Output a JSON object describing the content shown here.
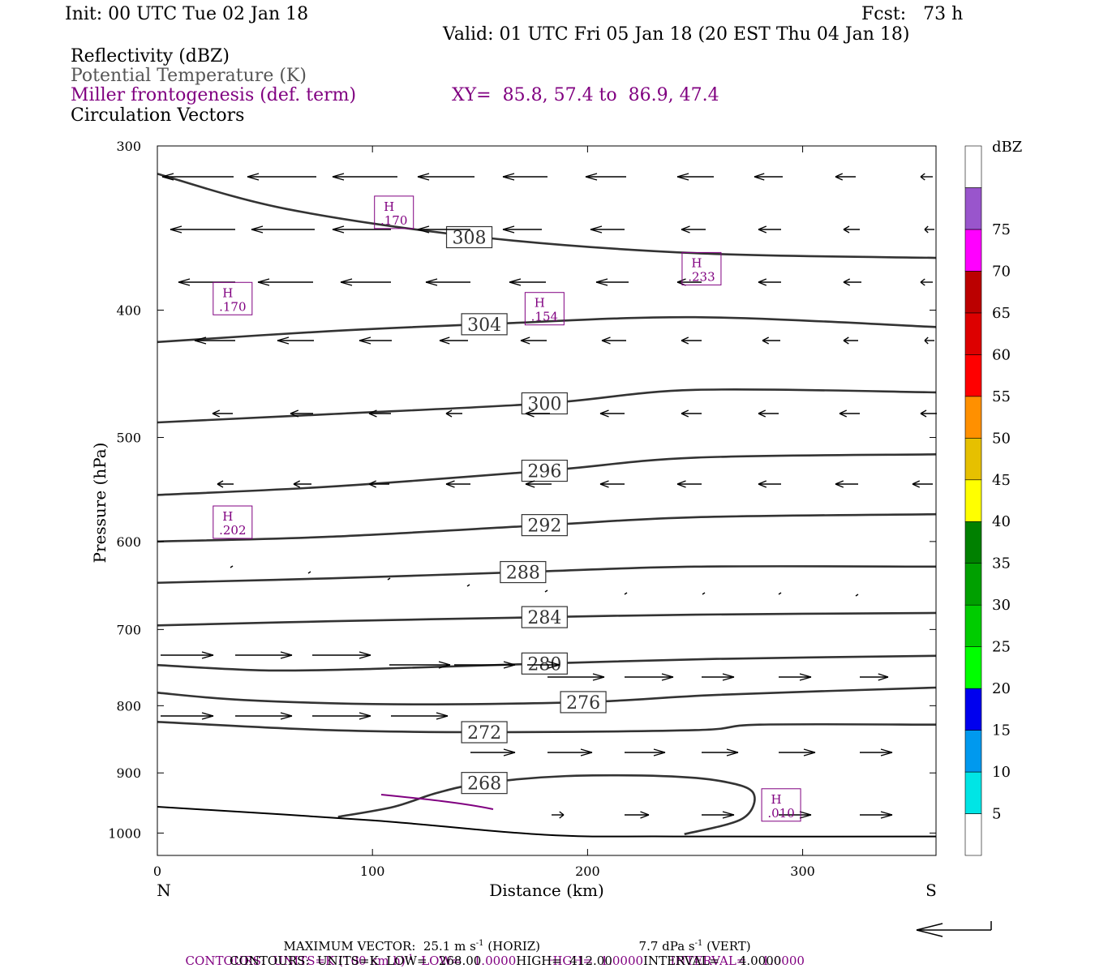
{
  "header": {
    "init": "Init: 00 UTC Tue 02 Jan 18",
    "fcst": "Fcst:   73 h",
    "valid": "Valid: 01 UTC Fri 05 Jan 18 (20 EST Thu 04 Jan 18)",
    "field1": "Reflectivity (dBZ)",
    "field2": "Potential Temperature (K)",
    "field3": "Miller frontogenesis (def. term)",
    "xy": "XY=  85.8, 57.4 to  86.9, 47.4",
    "field4": "Circulation Vectors"
  },
  "footer": {
    "max_vector": "MAXIMUM VECTOR:  25.1 m s",
    "max_vector_horiz": " (HORIZ)",
    "max_vector_vert": "7.7 dPa s",
    "max_vector_vert_tail": " (VERT)",
    "contours1": "CONTOURS:  UNITS=K (100 km h)",
    "contours1_tail": "  LOW=   1.0000        HIGH=  1.0000       INTERVAL=    1.0000",
    "contours2": "CONTOURS:  UNITS=K  LOW=   268.00         HIGH=  412.00        INTERVAL=     4.0000"
  },
  "chart_data": {
    "type": "cross-section",
    "xlabel": "Distance (km)",
    "ylabel": "Pressure (hPa)",
    "xlim": [
      0,
      362
    ],
    "ylim": [
      1040,
      300
    ],
    "y_scale": "log (pressure)",
    "x_ticks": [
      0,
      100,
      200,
      300
    ],
    "y_ticks": [
      300,
      400,
      500,
      600,
      700,
      800,
      900,
      1000
    ],
    "x_end_labels": {
      "left": "N",
      "right": "S"
    },
    "colorbar": {
      "title": "dBZ",
      "levels": [
        5,
        10,
        15,
        20,
        25,
        30,
        35,
        40,
        45,
        50,
        55,
        60,
        65,
        70,
        75
      ],
      "colors": [
        "#ffffff",
        "#00e5e5",
        "#0099ee",
        "#0000ee",
        "#00ff00",
        "#00cc00",
        "#00a000",
        "#008000",
        "#ffff00",
        "#e6c000",
        "#ff9000",
        "#ff0000",
        "#dd0000",
        "#bb0000",
        "#ff00ff",
        "#9955cc",
        "#ffffff"
      ]
    },
    "theta_contours": [
      {
        "label": "308",
        "label_at": [
          145,
          352
        ],
        "points": [
          [
            0,
            315
          ],
          [
            60,
            335
          ],
          [
            150,
            352
          ],
          [
            250,
            362
          ],
          [
            362,
            365
          ]
        ]
      },
      {
        "label": "304",
        "label_at": [
          152,
          410
        ],
        "points": [
          [
            0,
            423
          ],
          [
            80,
            415
          ],
          [
            152,
            410
          ],
          [
            250,
            405
          ],
          [
            362,
            412
          ]
        ]
      },
      {
        "label": "300",
        "label_at": [
          180,
          471
        ],
        "points": [
          [
            0,
            487
          ],
          [
            80,
            480
          ],
          [
            180,
            471
          ],
          [
            250,
            460
          ],
          [
            362,
            462
          ]
        ]
      },
      {
        "label": "296",
        "label_at": [
          180,
          530
        ],
        "points": [
          [
            0,
            553
          ],
          [
            80,
            545
          ],
          [
            180,
            530
          ],
          [
            250,
            518
          ],
          [
            362,
            515
          ]
        ]
      },
      {
        "label": "292",
        "label_at": [
          180,
          583
        ],
        "points": [
          [
            0,
            600
          ],
          [
            80,
            595
          ],
          [
            180,
            583
          ],
          [
            250,
            575
          ],
          [
            362,
            572
          ]
        ]
      },
      {
        "label": "288",
        "label_at": [
          170,
          633
        ],
        "points": [
          [
            0,
            645
          ],
          [
            80,
            640
          ],
          [
            170,
            633
          ],
          [
            250,
            627
          ],
          [
            362,
            627
          ]
        ]
      },
      {
        "label": "284",
        "label_at": [
          180,
          685
        ],
        "points": [
          [
            0,
            695
          ],
          [
            80,
            690
          ],
          [
            180,
            685
          ],
          [
            250,
            682
          ],
          [
            362,
            680
          ]
        ]
      },
      {
        "label": "280",
        "label_at": [
          180,
          743
        ],
        "points": [
          [
            0,
            745
          ],
          [
            50,
            752
          ],
          [
            100,
            750
          ],
          [
            180,
            743
          ],
          [
            260,
            737
          ],
          [
            362,
            733
          ]
        ]
      },
      {
        "label": "276",
        "label_at": [
          198,
          795
        ],
        "points": [
          [
            0,
            782
          ],
          [
            40,
            792
          ],
          [
            110,
            798
          ],
          [
            198,
            795
          ],
          [
            260,
            785
          ],
          [
            362,
            775
          ]
        ]
      },
      {
        "label": "272",
        "label_at": [
          152,
          838
        ],
        "points": [
          [
            0,
            823
          ],
          [
            80,
            835
          ],
          [
            152,
            838
          ],
          [
            250,
            835
          ],
          [
            280,
            827
          ],
          [
            362,
            827
          ]
        ]
      },
      {
        "label": "268",
        "label_at": [
          152,
          916
        ],
        "closed_loop": true,
        "points": [
          [
            84,
            972
          ],
          [
            110,
            955
          ],
          [
            130,
            932
          ],
          [
            152,
            916
          ],
          [
            190,
            905
          ],
          [
            235,
            905
          ],
          [
            262,
            913
          ],
          [
            277,
            932
          ],
          [
            272,
            975
          ],
          [
            245,
            1002
          ]
        ]
      }
    ],
    "terrain_line": [
      [
        0,
        955
      ],
      [
        100,
        978
      ],
      [
        180,
        1003
      ],
      [
        240,
        1006
      ],
      [
        362,
        1006
      ]
    ],
    "frontogenesis_maxima": [
      {
        "label": "H",
        "value": ".170",
        "x": 110,
        "p": 337
      },
      {
        "label": "H",
        "value": ".170",
        "x": 35,
        "p": 392
      },
      {
        "label": "H",
        "value": ".154",
        "x": 180,
        "p": 399
      },
      {
        "label": "H",
        "value": ".233",
        "x": 253,
        "p": 372
      },
      {
        "label": "H",
        "value": ".202",
        "x": 35,
        "p": 580
      },
      {
        "label": "H",
        "value": ".010",
        "x": 290,
        "p": 952
      }
    ],
    "vector_scale": {
      "max_horiz": 25.1,
      "horiz_units": "m s-1",
      "max_vert": 7.7,
      "vert_units": "dPa s-1"
    }
  }
}
